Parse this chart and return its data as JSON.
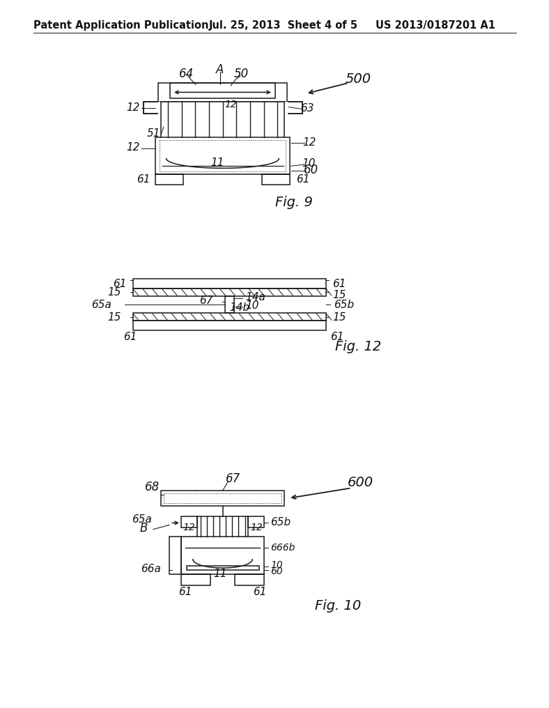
{
  "background_color": "#ffffff",
  "header_left": "Patent Application Publication",
  "header_mid": "Jul. 25, 2013  Sheet 4 of 5",
  "header_right": "US 2013/0187201 A1",
  "fig9_label": "Fig. 9",
  "fig12_label": "Fig. 12",
  "fig10_label": "Fig. 10",
  "lc": "#1a1a1a",
  "lw": 1.1
}
